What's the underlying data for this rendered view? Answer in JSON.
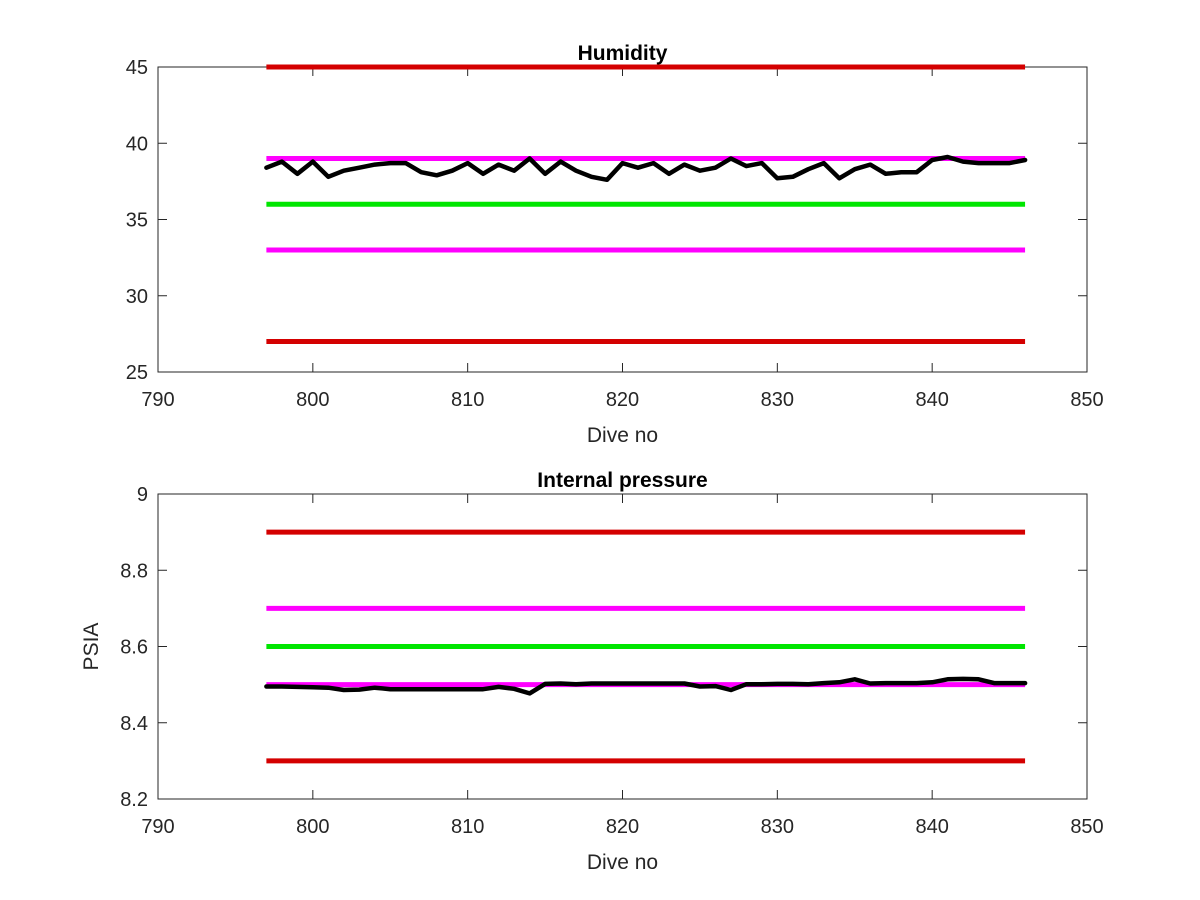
{
  "chart_data": [
    {
      "type": "line",
      "title": "Humidity",
      "xlabel": "Dive no",
      "ylabel": "",
      "xlim": [
        790,
        850
      ],
      "ylim": [
        25,
        45
      ],
      "xticks": [
        790,
        800,
        810,
        820,
        830,
        840,
        850
      ],
      "yticks": [
        25,
        30,
        35,
        40,
        45
      ],
      "grid": false,
      "reference_lines": [
        {
          "color": "#d40000",
          "y": 45,
          "x": [
            797,
            846
          ]
        },
        {
          "color": "#d40000",
          "y": 27,
          "x": [
            797,
            846
          ]
        },
        {
          "color": "#ff00ff",
          "y": 39,
          "x": [
            797,
            846
          ]
        },
        {
          "color": "#ff00ff",
          "y": 33,
          "x": [
            797,
            846
          ]
        },
        {
          "color": "#00e600",
          "y": 36,
          "x": [
            797,
            846
          ]
        }
      ],
      "series": [
        {
          "color": "#000000",
          "x": [
            797,
            798,
            799,
            800,
            801,
            802,
            803,
            804,
            805,
            806,
            807,
            808,
            809,
            810,
            811,
            812,
            813,
            814,
            815,
            816,
            817,
            818,
            819,
            820,
            821,
            822,
            823,
            824,
            825,
            826,
            827,
            828,
            829,
            830,
            831,
            832,
            833,
            834,
            835,
            836,
            837,
            838,
            839,
            840,
            841,
            842,
            843,
            844,
            845,
            846
          ],
          "values": [
            38.4,
            38.8,
            38.0,
            38.8,
            37.8,
            38.2,
            38.4,
            38.6,
            38.7,
            38.7,
            38.1,
            37.9,
            38.2,
            38.7,
            38.0,
            38.6,
            38.2,
            39.0,
            38.0,
            38.8,
            38.2,
            37.8,
            37.6,
            38.7,
            38.4,
            38.7,
            38.0,
            38.6,
            38.2,
            38.4,
            39.0,
            38.5,
            38.7,
            37.7,
            37.8,
            38.3,
            38.7,
            37.7,
            38.3,
            38.6,
            38.0,
            38.1,
            38.1,
            38.9,
            39.1,
            38.8,
            38.7,
            38.7,
            38.7,
            38.9
          ]
        }
      ]
    },
    {
      "type": "line",
      "title": "Internal pressure",
      "xlabel": "Dive no",
      "ylabel": "PSIA",
      "xlim": [
        790,
        850
      ],
      "ylim": [
        8.2,
        9
      ],
      "xticks": [
        790,
        800,
        810,
        820,
        830,
        840,
        850
      ],
      "yticks": [
        8.2,
        8.4,
        8.6,
        8.8,
        9
      ],
      "grid": false,
      "reference_lines": [
        {
          "color": "#d40000",
          "y": 8.9,
          "x": [
            797,
            846
          ]
        },
        {
          "color": "#d40000",
          "y": 8.3,
          "x": [
            797,
            846
          ]
        },
        {
          "color": "#ff00ff",
          "y": 8.7,
          "x": [
            797,
            846
          ]
        },
        {
          "color": "#ff00ff",
          "y": 8.5,
          "x": [
            797,
            846
          ]
        },
        {
          "color": "#00e600",
          "y": 8.6,
          "x": [
            797,
            846
          ]
        }
      ],
      "series": [
        {
          "color": "#000000",
          "x": [
            797,
            798,
            799,
            800,
            801,
            802,
            803,
            804,
            805,
            806,
            807,
            808,
            809,
            810,
            811,
            812,
            813,
            814,
            815,
            816,
            817,
            818,
            819,
            820,
            821,
            822,
            823,
            824,
            825,
            826,
            827,
            828,
            829,
            830,
            831,
            832,
            833,
            834,
            835,
            836,
            837,
            838,
            839,
            840,
            841,
            842,
            843,
            844,
            845,
            846
          ],
          "values": [
            8.495,
            8.495,
            8.494,
            8.493,
            8.492,
            8.486,
            8.487,
            8.492,
            8.488,
            8.488,
            8.488,
            8.488,
            8.488,
            8.488,
            8.488,
            8.494,
            8.489,
            8.477,
            8.502,
            8.503,
            8.501,
            8.503,
            8.503,
            8.503,
            8.503,
            8.503,
            8.503,
            8.503,
            8.495,
            8.496,
            8.486,
            8.501,
            8.501,
            8.502,
            8.502,
            8.501,
            8.504,
            8.506,
            8.514,
            8.503,
            8.504,
            8.504,
            8.504,
            8.506,
            8.514,
            8.515,
            8.514,
            8.504,
            8.504,
            8.504
          ]
        }
      ]
    }
  ]
}
